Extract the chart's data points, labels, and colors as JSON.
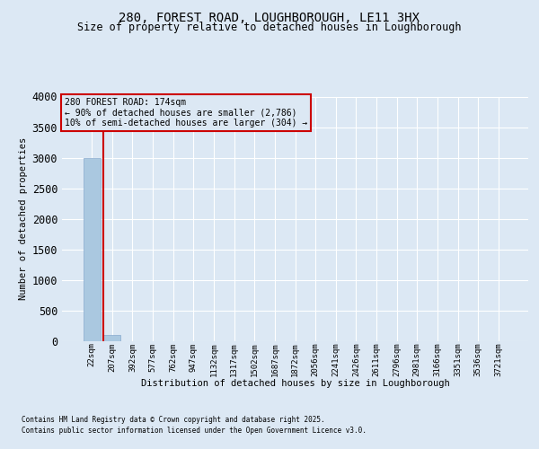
{
  "title1": "280, FOREST ROAD, LOUGHBOROUGH, LE11 3HX",
  "title2": "Size of property relative to detached houses in Loughborough",
  "xlabel": "Distribution of detached houses by size in Loughborough",
  "ylabel": "Number of detached properties",
  "footer1": "Contains HM Land Registry data © Crown copyright and database right 2025.",
  "footer2": "Contains public sector information licensed under the Open Government Licence v3.0.",
  "annotation_line1": "280 FOREST ROAD: 174sqm",
  "annotation_line2": "← 90% of detached houses are smaller (2,786)",
  "annotation_line3": "10% of semi-detached houses are larger (304) →",
  "x_labels": [
    "22sqm",
    "207sqm",
    "392sqm",
    "577sqm",
    "762sqm",
    "947sqm",
    "1132sqm",
    "1317sqm",
    "1502sqm",
    "1687sqm",
    "1872sqm",
    "2056sqm",
    "2241sqm",
    "2426sqm",
    "2611sqm",
    "2796sqm",
    "2981sqm",
    "3166sqm",
    "3351sqm",
    "3536sqm",
    "3721sqm"
  ],
  "bar_values": [
    3000,
    100,
    0,
    0,
    0,
    0,
    0,
    0,
    0,
    0,
    0,
    0,
    0,
    0,
    0,
    0,
    0,
    0,
    0,
    0,
    0
  ],
  "bar_color": "#aac8e0",
  "bar_edge_color": "#88aace",
  "red_line_x": 0.57,
  "ylim": [
    0,
    4000
  ],
  "yticks": [
    0,
    500,
    1000,
    1500,
    2000,
    2500,
    3000,
    3500,
    4000
  ],
  "bg_color": "#dce8f4",
  "grid_color": "#ffffff",
  "red_color": "#cc0000",
  "title1_fontsize": 10,
  "title2_fontsize": 8.5,
  "tick_fontsize": 6.5,
  "ylabel_fontsize": 7.5,
  "xlabel_fontsize": 7.5,
  "annot_fontsize": 7,
  "footer_fontsize": 5.5
}
